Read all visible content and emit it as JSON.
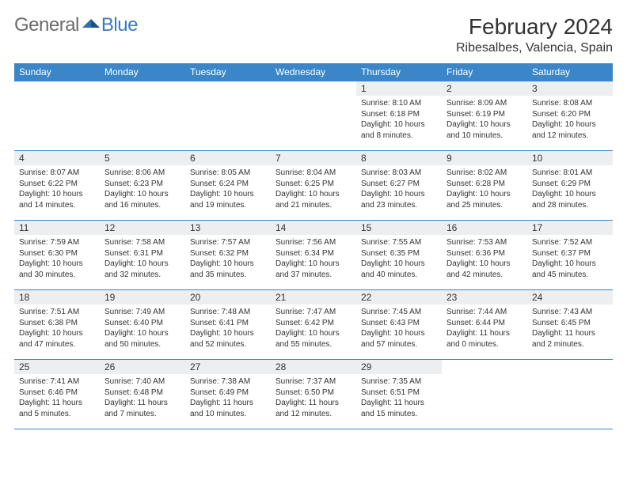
{
  "brand": {
    "part1": "General",
    "part2": "Blue"
  },
  "title": "February 2024",
  "location": "Ribesalbes, Valencia, Spain",
  "colors": {
    "header_bg": "#3a86c8",
    "header_fg": "#ffffff",
    "daynum_bg": "#eceef0",
    "rule": "#3a86c8",
    "logo_gray": "#6b6b6b",
    "logo_blue": "#3a7bbf"
  },
  "weekdays": [
    "Sunday",
    "Monday",
    "Tuesday",
    "Wednesday",
    "Thursday",
    "Friday",
    "Saturday"
  ],
  "weeks": [
    [
      null,
      null,
      null,
      null,
      {
        "n": "1",
        "sr": "8:10 AM",
        "ss": "6:18 PM",
        "dl": "10 hours and 8 minutes."
      },
      {
        "n": "2",
        "sr": "8:09 AM",
        "ss": "6:19 PM",
        "dl": "10 hours and 10 minutes."
      },
      {
        "n": "3",
        "sr": "8:08 AM",
        "ss": "6:20 PM",
        "dl": "10 hours and 12 minutes."
      }
    ],
    [
      {
        "n": "4",
        "sr": "8:07 AM",
        "ss": "6:22 PM",
        "dl": "10 hours and 14 minutes."
      },
      {
        "n": "5",
        "sr": "8:06 AM",
        "ss": "6:23 PM",
        "dl": "10 hours and 16 minutes."
      },
      {
        "n": "6",
        "sr": "8:05 AM",
        "ss": "6:24 PM",
        "dl": "10 hours and 19 minutes."
      },
      {
        "n": "7",
        "sr": "8:04 AM",
        "ss": "6:25 PM",
        "dl": "10 hours and 21 minutes."
      },
      {
        "n": "8",
        "sr": "8:03 AM",
        "ss": "6:27 PM",
        "dl": "10 hours and 23 minutes."
      },
      {
        "n": "9",
        "sr": "8:02 AM",
        "ss": "6:28 PM",
        "dl": "10 hours and 25 minutes."
      },
      {
        "n": "10",
        "sr": "8:01 AM",
        "ss": "6:29 PM",
        "dl": "10 hours and 28 minutes."
      }
    ],
    [
      {
        "n": "11",
        "sr": "7:59 AM",
        "ss": "6:30 PM",
        "dl": "10 hours and 30 minutes."
      },
      {
        "n": "12",
        "sr": "7:58 AM",
        "ss": "6:31 PM",
        "dl": "10 hours and 32 minutes."
      },
      {
        "n": "13",
        "sr": "7:57 AM",
        "ss": "6:32 PM",
        "dl": "10 hours and 35 minutes."
      },
      {
        "n": "14",
        "sr": "7:56 AM",
        "ss": "6:34 PM",
        "dl": "10 hours and 37 minutes."
      },
      {
        "n": "15",
        "sr": "7:55 AM",
        "ss": "6:35 PM",
        "dl": "10 hours and 40 minutes."
      },
      {
        "n": "16",
        "sr": "7:53 AM",
        "ss": "6:36 PM",
        "dl": "10 hours and 42 minutes."
      },
      {
        "n": "17",
        "sr": "7:52 AM",
        "ss": "6:37 PM",
        "dl": "10 hours and 45 minutes."
      }
    ],
    [
      {
        "n": "18",
        "sr": "7:51 AM",
        "ss": "6:38 PM",
        "dl": "10 hours and 47 minutes."
      },
      {
        "n": "19",
        "sr": "7:49 AM",
        "ss": "6:40 PM",
        "dl": "10 hours and 50 minutes."
      },
      {
        "n": "20",
        "sr": "7:48 AM",
        "ss": "6:41 PM",
        "dl": "10 hours and 52 minutes."
      },
      {
        "n": "21",
        "sr": "7:47 AM",
        "ss": "6:42 PM",
        "dl": "10 hours and 55 minutes."
      },
      {
        "n": "22",
        "sr": "7:45 AM",
        "ss": "6:43 PM",
        "dl": "10 hours and 57 minutes."
      },
      {
        "n": "23",
        "sr": "7:44 AM",
        "ss": "6:44 PM",
        "dl": "11 hours and 0 minutes."
      },
      {
        "n": "24",
        "sr": "7:43 AM",
        "ss": "6:45 PM",
        "dl": "11 hours and 2 minutes."
      }
    ],
    [
      {
        "n": "25",
        "sr": "7:41 AM",
        "ss": "6:46 PM",
        "dl": "11 hours and 5 minutes."
      },
      {
        "n": "26",
        "sr": "7:40 AM",
        "ss": "6:48 PM",
        "dl": "11 hours and 7 minutes."
      },
      {
        "n": "27",
        "sr": "7:38 AM",
        "ss": "6:49 PM",
        "dl": "11 hours and 10 minutes."
      },
      {
        "n": "28",
        "sr": "7:37 AM",
        "ss": "6:50 PM",
        "dl": "11 hours and 12 minutes."
      },
      {
        "n": "29",
        "sr": "7:35 AM",
        "ss": "6:51 PM",
        "dl": "11 hours and 15 minutes."
      },
      null,
      null
    ]
  ],
  "labels": {
    "sunrise": "Sunrise:",
    "sunset": "Sunset:",
    "daylight": "Daylight:"
  }
}
